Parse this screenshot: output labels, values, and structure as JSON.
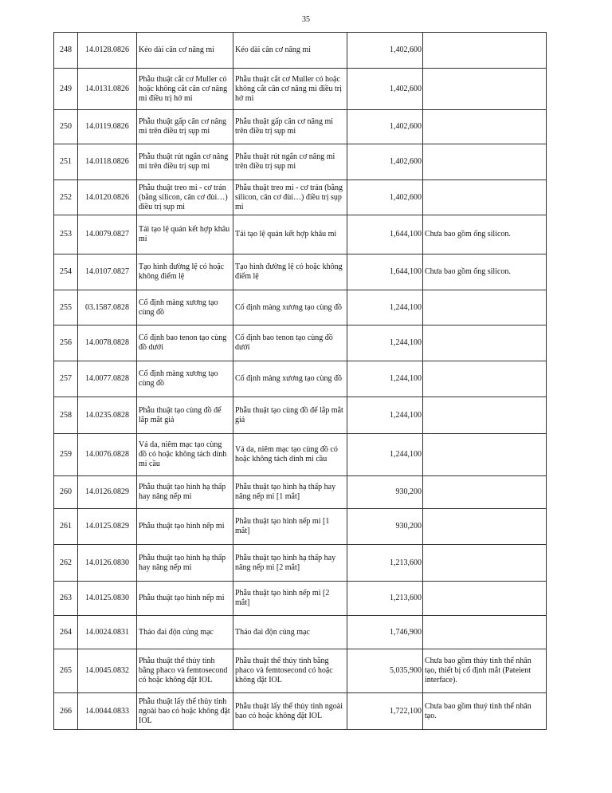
{
  "page_number": "35",
  "rows": [
    {
      "stt": "248",
      "code": "14.0128.0826",
      "name": "Kéo dài cân cơ nâng mi",
      "name2": "Kéo dài cân cơ nâng mi",
      "price": "1,402,600",
      "note": ""
    },
    {
      "stt": "249",
      "code": "14.0131.0826",
      "name": "Phẫu thuật cắt cơ Muller có hoặc không cắt cân cơ nâng mi điều trị hở mi",
      "name2": "Phẫu thuật cắt cơ Muller có hoặc không cắt cân cơ nâng mi điều trị hở mi",
      "price": "1,402,600",
      "note": ""
    },
    {
      "stt": "250",
      "code": "14.0119.0826",
      "name": "Phẫu thuật gấp cân cơ nâng mi trên điều trị sụp mi",
      "name2": "Phẫu thuật gấp cân cơ nâng mi trên điều trị sụp mi",
      "price": "1,402,600",
      "note": ""
    },
    {
      "stt": "251",
      "code": "14.0118.0826",
      "name": "Phẫu thuật rút ngắn cơ nâng mi trên điều trị sụp mi",
      "name2": "Phẫu thuật rút ngắn cơ nâng mi trên điều trị sụp mi",
      "price": "1,402,600",
      "note": ""
    },
    {
      "stt": "252",
      "code": "14.0120.0826",
      "name": "Phẫu thuật treo mi - cơ trán (bằng silicon, cân cơ đùi…) điều trị sụp mi",
      "name2": "Phẫu thuật treo mi - cơ trán (bằng silicon, cân cơ đùi…) điều trị sụp mi",
      "price": "1,402,600",
      "note": ""
    },
    {
      "stt": "253",
      "code": "14.0079.0827",
      "name": "Tái tạo lệ quản kết hợp khâu mi",
      "name2": "Tái tạo lệ quản kết hợp khâu mi",
      "price": "1,644,100",
      "note": "Chưa bao gồm ống silicon."
    },
    {
      "stt": "254",
      "code": "14.0107.0827",
      "name": "Tạo hình đường lệ có hoặc không điểm lệ",
      "name2": "Tạo hình đường lệ có hoặc không điểm lệ",
      "price": "1,644,100",
      "note": "Chưa bao gồm ống silicon."
    },
    {
      "stt": "255",
      "code": "03.1587.0828",
      "name": "Cố định màng xương tạo cùng đồ",
      "name2": "Cố định màng xương tạo cùng đồ",
      "price": "1,244,100",
      "note": ""
    },
    {
      "stt": "256",
      "code": "14.0078.0828",
      "name": "Cố định bao tenon tạo cùng đồ dưới",
      "name2": "Cố định bao tenon tạo cùng đồ dưới",
      "price": "1,244,100",
      "note": ""
    },
    {
      "stt": "257",
      "code": "14.0077.0828",
      "name": "Cố định màng xương tạo cùng đồ",
      "name2": "Cố định màng xương tạo cùng đồ",
      "price": "1,244,100",
      "note": ""
    },
    {
      "stt": "258",
      "code": "14.0235.0828",
      "name": "Phẫu thuật tạo cùng đồ để lắp mắt giả",
      "name2": "Phẫu thuật tạo cùng đồ để lắp mắt giả",
      "price": "1,244,100",
      "note": ""
    },
    {
      "stt": "259",
      "code": "14.0076.0828",
      "name": "Vá da, niêm mạc tạo cùng đồ có hoặc không tách dính mi cầu",
      "name2": "Vá da, niêm mạc tạo cùng đồ có hoặc không tách dính mi cầu",
      "price": "1,244,100",
      "note": ""
    },
    {
      "stt": "260",
      "code": "14.0126.0829",
      "name": "Phẫu thuật tạo hình hạ thấp hay nâng nếp mi",
      "name2": "Phẫu thuật tạo hình hạ thấp hay nâng nếp mi [1 mắt]",
      "price": "930,200",
      "note": ""
    },
    {
      "stt": "261",
      "code": "14.0125.0829",
      "name": "Phẫu thuật tạo hình nếp mi",
      "name2": "Phẫu thuật tạo hình nếp mi [1 mắt]",
      "price": "930,200",
      "note": ""
    },
    {
      "stt": "262",
      "code": "14.0126.0830",
      "name": "Phẫu thuật tạo hình hạ thấp hay nâng nếp mi",
      "name2": "Phẫu thuật tạo hình hạ thấp hay nâng nếp mi [2 mắt]",
      "price": "1,213,600",
      "note": ""
    },
    {
      "stt": "263",
      "code": "14.0125.0830",
      "name": "Phẫu thuật tạo hình nếp mi",
      "name2": "Phẫu thuật tạo hình nếp mi [2 mắt]",
      "price": "1,213,600",
      "note": ""
    },
    {
      "stt": "264",
      "code": "14.0024.0831",
      "name": "Tháo đai độn củng mạc",
      "name2": "Tháo đai độn củng mạc",
      "price": "1,746,900",
      "note": ""
    },
    {
      "stt": "265",
      "code": "14.0045.0832",
      "name": "Phẫu thuật thể thủy tinh bằng phaco và femtosecond có hoặc không đặt IOL",
      "name2": "Phẫu thuật thể thủy tinh bằng phaco và femtosecond có hoặc không đặt IOL",
      "price": "5,035,900",
      "note": "Chưa bao gồm thủy tinh thể nhân tạo, thiết bị cố định mắt (Pateient interface)."
    },
    {
      "stt": "266",
      "code": "14.0044.0833",
      "name": "Phẫu thuật lấy thể thủy tinh ngoài bao có hoặc không đặt IOL",
      "name2": "Phẫu thuật lấy thể thủy tinh ngoài bao có hoặc không đặt IOL",
      "price": "1,722,100",
      "note": "Chưa bao gồm thuỷ tinh thể nhân tạo."
    }
  ]
}
